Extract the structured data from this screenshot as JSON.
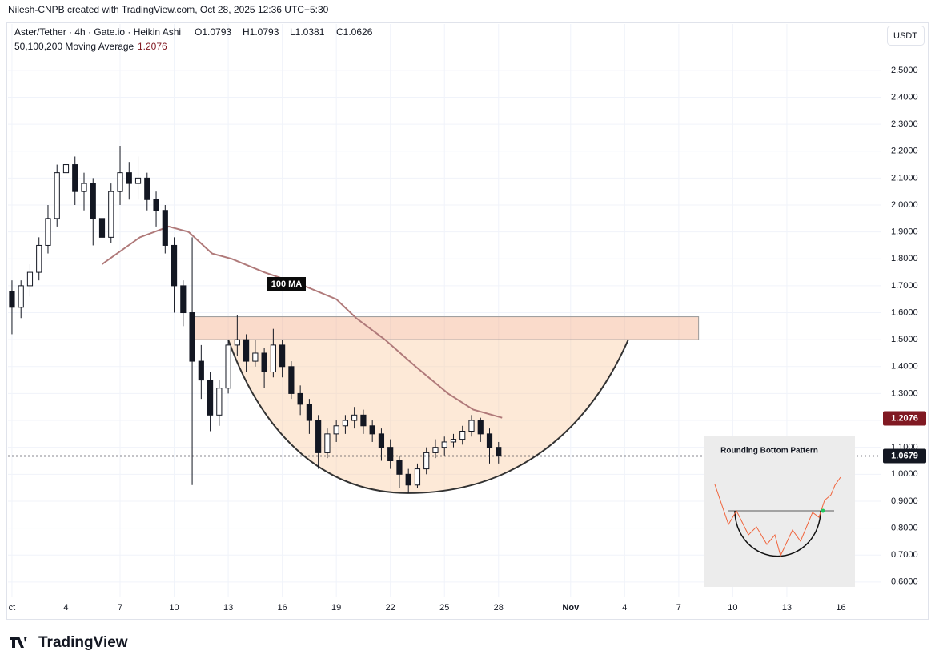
{
  "header": {
    "credit": "Nilesh-CNPB created with TradingView.com, Oct 28, 2025 12:36 UTC+5:30",
    "symbol": "Aster/Tether · 4h · Gate.io · Heikin Ashi",
    "ohlc": [
      "O1.0793",
      "H1.0793",
      "L1.0381",
      "C1.0626"
    ],
    "indicator": "50,100,200 Moving Average",
    "currency": "USDT",
    "logo": "TradingView"
  },
  "chart_data": {
    "type": "candlestick",
    "x": [
      1,
      1.5,
      2,
      2.5,
      3,
      3.5,
      4,
      4.5,
      5,
      5.5,
      6,
      6.5,
      7,
      7.5,
      8,
      8.5,
      9,
      9.5,
      10,
      10.5,
      11,
      11.5,
      12,
      12.5,
      13,
      13.5,
      14,
      14.5,
      15,
      15.5,
      16,
      16.5,
      17,
      17.5,
      18,
      18.5,
      19,
      19.5,
      20,
      20.5,
      21,
      21.5,
      22,
      22.5,
      23,
      23.5,
      24,
      24.5,
      25,
      25.5,
      26,
      26.5,
      27,
      27.5,
      28
    ],
    "open": [
      1.68,
      1.62,
      1.7,
      1.75,
      1.85,
      1.95,
      2.12,
      2.15,
      2.05,
      2.08,
      1.95,
      1.88,
      2.05,
      2.12,
      2.08,
      2.1,
      2.02,
      1.98,
      1.85,
      1.7,
      1.6,
      1.42,
      1.35,
      1.22,
      1.32,
      1.48,
      1.5,
      1.42,
      1.45,
      1.38,
      1.48,
      1.4,
      1.3,
      1.26,
      1.2,
      1.08,
      1.15,
      1.18,
      1.2,
      1.22,
      1.18,
      1.15,
      1.1,
      1.05,
      1.0,
      0.96,
      1.02,
      1.08,
      1.1,
      1.12,
      1.13,
      1.16,
      1.2,
      1.15,
      1.1
    ],
    "high": [
      1.72,
      1.72,
      1.78,
      1.88,
      2.0,
      2.15,
      2.28,
      2.18,
      2.12,
      2.1,
      1.98,
      2.08,
      2.22,
      2.16,
      2.18,
      2.12,
      2.05,
      2.0,
      1.88,
      1.72,
      1.88,
      1.48,
      1.38,
      1.35,
      1.5,
      1.59,
      1.52,
      1.5,
      1.47,
      1.54,
      1.5,
      1.42,
      1.33,
      1.28,
      1.22,
      1.17,
      1.2,
      1.22,
      1.25,
      1.24,
      1.2,
      1.17,
      1.13,
      1.07,
      1.02,
      1.04,
      1.1,
      1.13,
      1.14,
      1.15,
      1.18,
      1.22,
      1.21,
      1.17,
      1.12
    ],
    "low": [
      1.52,
      1.58,
      1.66,
      1.72,
      1.82,
      1.92,
      2.0,
      2.0,
      1.98,
      1.85,
      1.8,
      1.86,
      2.0,
      2.02,
      2.02,
      1.98,
      1.92,
      1.82,
      1.6,
      1.55,
      0.96,
      1.28,
      1.16,
      1.18,
      1.3,
      1.44,
      1.38,
      1.4,
      1.32,
      1.36,
      1.36,
      1.28,
      1.22,
      1.15,
      1.02,
      1.06,
      1.12,
      1.15,
      1.17,
      1.15,
      1.12,
      1.05,
      1.02,
      0.95,
      0.93,
      0.95,
      1.0,
      1.06,
      1.07,
      1.1,
      1.11,
      1.14,
      1.12,
      1.04,
      1.04
    ],
    "close": [
      1.62,
      1.7,
      1.75,
      1.85,
      1.95,
      2.12,
      2.15,
      2.05,
      2.08,
      1.95,
      1.88,
      2.05,
      2.12,
      2.08,
      2.1,
      2.02,
      1.98,
      1.85,
      1.7,
      1.6,
      1.42,
      1.35,
      1.22,
      1.32,
      1.48,
      1.5,
      1.42,
      1.45,
      1.38,
      1.48,
      1.4,
      1.3,
      1.26,
      1.2,
      1.08,
      1.15,
      1.18,
      1.2,
      1.22,
      1.18,
      1.15,
      1.1,
      1.05,
      1.0,
      0.96,
      1.02,
      1.08,
      1.1,
      1.12,
      1.13,
      1.16,
      1.2,
      1.15,
      1.1,
      1.07
    ],
    "up_color": "#ffffff",
    "down_color": "#131722",
    "wick_color": "#131722",
    "ma": {
      "name": "100 MA",
      "color": "#b07a7a",
      "x": [
        6,
        8.1,
        9.7,
        10.8,
        12.1,
        13.2,
        15,
        17.2,
        19,
        20.1,
        21.7,
        23.4,
        25.2,
        26.6,
        28.2
      ],
      "values": [
        1.78,
        1.88,
        1.92,
        1.9,
        1.82,
        1.8,
        1.75,
        1.7,
        1.65,
        1.58,
        1.5,
        1.4,
        1.3,
        1.24,
        1.21
      ],
      "last": 1.2076,
      "label_color": "#801922"
    },
    "last_price": 1.0679,
    "zone": {
      "x": [
        11,
        39.1
      ],
      "y": [
        1.5,
        1.585
      ],
      "color": "#f2a57c"
    },
    "pattern": {
      "x": [
        13,
        23,
        35.2
      ],
      "y": [
        1.5,
        0.93,
        1.5
      ],
      "color": "#f9c99a"
    },
    "inset_title": "Rounding Bottom Pattern",
    "xlim": [
      0.78,
      49.2
    ],
    "xticks": [
      {
        "value": 1,
        "label": "ct"
      },
      4,
      7,
      10,
      13,
      16,
      19,
      22,
      25,
      28,
      {
        "value": 32,
        "label": "Nov"
      },
      {
        "value": 35,
        "label": "4"
      },
      {
        "value": 38,
        "label": "7"
      },
      {
        "value": 41,
        "label": "10"
      },
      {
        "value": 44,
        "label": "13"
      },
      {
        "value": 47,
        "label": "16"
      }
    ],
    "ylim": [
      0.546,
      2.672
    ],
    "yticks": [
      {
        "value": 0.6,
        "label": "0.6000"
      },
      {
        "value": 0.7,
        "label": "0.7000"
      },
      {
        "value": 0.8,
        "label": "0.8000"
      },
      {
        "value": 0.9,
        "label": "0.9000"
      },
      {
        "value": 1.0,
        "label": "1.0000"
      },
      {
        "value": 1.1,
        "label": "1.1000"
      },
      {
        "value": 1.2,
        "label": "1.2000"
      },
      {
        "value": 1.3,
        "label": "1.3000"
      },
      {
        "value": 1.4,
        "label": "1.4000"
      },
      {
        "value": 1.5,
        "label": "1.5000"
      },
      {
        "value": 1.6,
        "label": "1.6000"
      },
      {
        "value": 1.7,
        "label": "1.7000"
      },
      {
        "value": 1.8,
        "label": "1.8000"
      },
      {
        "value": 1.9,
        "label": "1.9000"
      },
      {
        "value": 2.0,
        "label": "2.0000"
      },
      {
        "value": 2.1,
        "label": "2.1000"
      },
      {
        "value": 2.2,
        "label": "2.2000"
      },
      {
        "value": 2.3,
        "label": "2.3000"
      },
      {
        "value": 2.4,
        "label": "2.4000"
      },
      {
        "value": 2.5,
        "label": "2.5000"
      }
    ],
    "grid": true
  }
}
